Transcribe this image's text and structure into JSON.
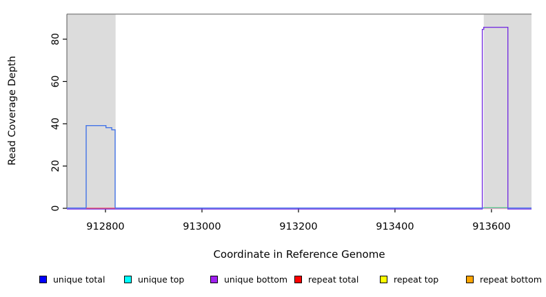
{
  "chart_data": {
    "type": "line",
    "title": "",
    "xlabel": "Coordinate in Reference Genome",
    "ylabel": "Read Coverage Depth",
    "xlim": [
      912720,
      913683
    ],
    "ylim": [
      0,
      92
    ],
    "x_ticks": [
      912800,
      913000,
      913200,
      913400,
      913600
    ],
    "y_ticks": [
      0,
      20,
      40,
      60,
      80
    ],
    "grid": false,
    "legend_position": "bottom",
    "highlight_regions": [
      {
        "x0": 912720,
        "x1": 912821
      },
      {
        "x0": 913584,
        "x1": 913683
      }
    ],
    "series": [
      {
        "name": "unique bottom",
        "color": "#7631e0",
        "points": [
          [
            912720,
            0
          ],
          [
            913581,
            0
          ],
          [
            913581,
            85
          ],
          [
            913584,
            85
          ],
          [
            913584,
            86
          ],
          [
            913634,
            86
          ],
          [
            913634,
            0
          ],
          [
            913683,
            0
          ]
        ]
      },
      {
        "name": "unique total",
        "color": "#4273e8",
        "points": [
          [
            912720,
            0
          ],
          [
            912760,
            0
          ],
          [
            912760,
            39
          ],
          [
            912801,
            39
          ],
          [
            912801,
            38
          ],
          [
            912813,
            38
          ],
          [
            912813,
            37
          ],
          [
            912820,
            37
          ],
          [
            912820,
            0
          ],
          [
            913683,
            0
          ]
        ]
      }
    ],
    "baseline_segments": [
      {
        "name": "repeat total at zero",
        "color": "#e8566b",
        "x0": 912760,
        "x1": 912820,
        "dy": -0.2
      },
      {
        "name": "green segment at zero",
        "color": "#8fdf8f",
        "x0": 913584,
        "x1": 913633,
        "dy": -1.2
      },
      {
        "name": "faded red at zero",
        "color": "#f2b7c2",
        "x0": 913584,
        "x1": 913633,
        "dy": 0.6
      }
    ],
    "legend": [
      {
        "label": "unique total",
        "color": "#0000ff"
      },
      {
        "label": "unique top",
        "color": "#00ffff"
      },
      {
        "label": "unique bottom",
        "color": "#a020f0"
      },
      {
        "label": "repeat total",
        "color": "#ff0000"
      },
      {
        "label": "repeat top",
        "color": "#ffff00"
      },
      {
        "label": "repeat bottom",
        "color": "#ffa500"
      }
    ]
  }
}
